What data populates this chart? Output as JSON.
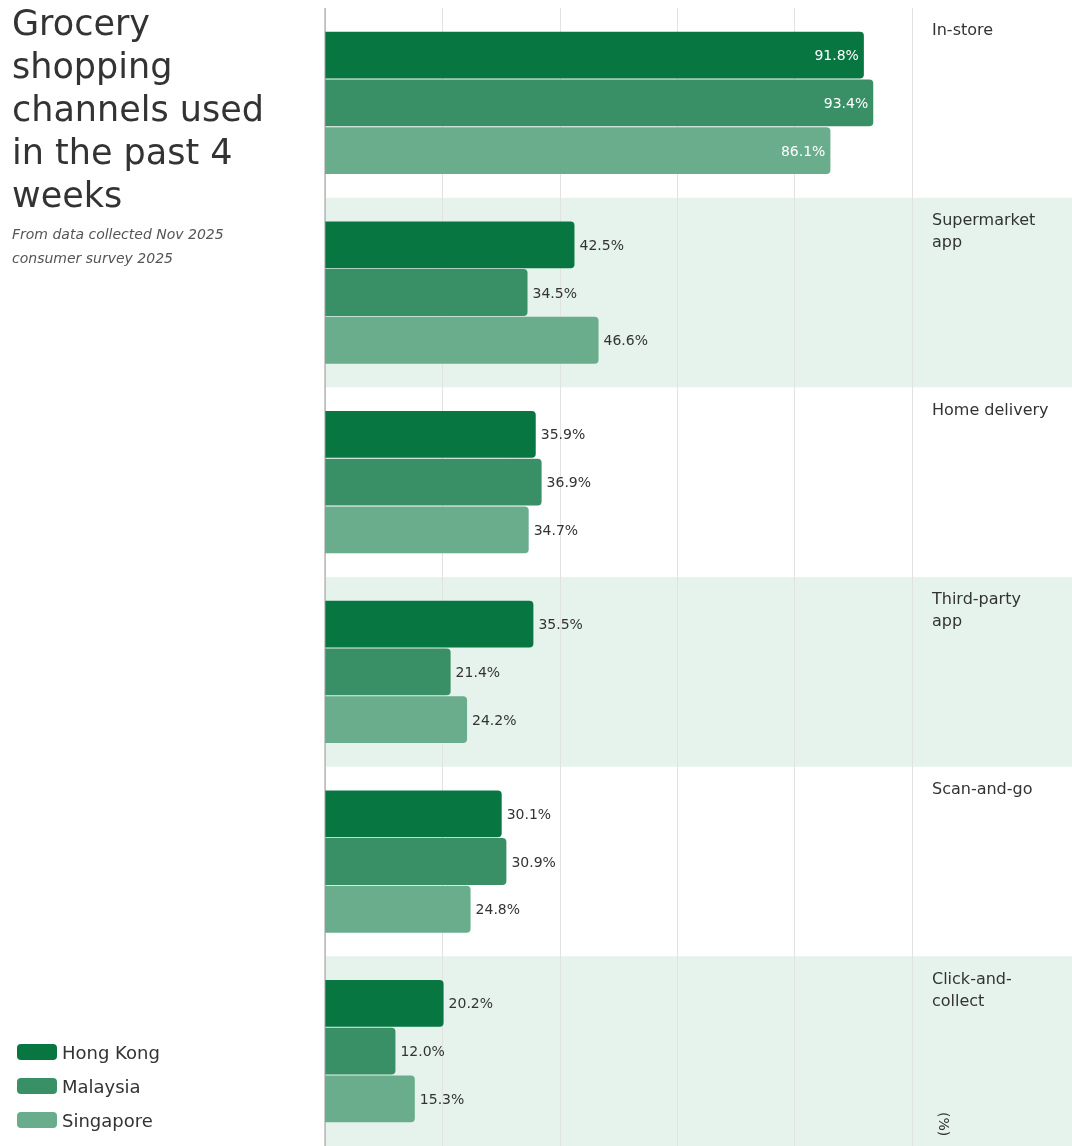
{
  "chart_data": {
    "type": "bar",
    "orientation": "horizontal",
    "title": "Grocery shopping channels used in the past 4 weeks",
    "subtitle": "From data collected Nov 2025",
    "annotations": [
      "consumer survey 2025",
      "(%)"
    ],
    "categories": [
      "In-store",
      "Supermarket app",
      "Home delivery",
      "Third-party app",
      "Scan-and-go",
      "Click-and-collect"
    ],
    "series": [
      {
        "name": "Hong Kong",
        "color": "#077640",
        "values": [
          91.8,
          42.5,
          35.9,
          35.5,
          30.1,
          20.2
        ],
        "value_labels": [
          "91.8%",
          "42.5%",
          "35.9%",
          "35.5%",
          "30.1%",
          "20.2%"
        ]
      },
      {
        "name": "Malaysia",
        "color": "#3a9066",
        "values": [
          93.4,
          34.5,
          36.9,
          21.4,
          30.9,
          12.0
        ],
        "value_labels": [
          "93.4%",
          "34.5%",
          "36.9%",
          "21.4%",
          "30.9%",
          "12.0%"
        ]
      },
      {
        "name": "Singapore",
        "color": "#6aad8c",
        "values": [
          86.1,
          46.6,
          34.7,
          24.2,
          24.8,
          15.3
        ],
        "value_labels": [
          "86.1%",
          "46.6%",
          "34.7%",
          "24.2%",
          "24.8%",
          "15.3%"
        ]
      }
    ],
    "xlim": [
      0,
      100
    ],
    "xticks": [
      {
        "value": 0,
        "label": null
      },
      {
        "value": 20,
        "label": null
      },
      {
        "value": 40,
        "label": null
      },
      {
        "value": 60,
        "label": null
      },
      {
        "value": 80,
        "label": null
      },
      {
        "value": 100,
        "label": null
      }
    ],
    "tick_labels": "y",
    "grid": "x",
    "legend": "bottom left",
    "bands": [
      {
        "axis": "y",
        "from": "Supermarket app",
        "to": "Supermarket app",
        "color": "#e5f3ec"
      },
      {
        "axis": "y",
        "from": "Third-party app",
        "to": "Third-party app",
        "color": "#e5f3ec"
      },
      {
        "axis": "y",
        "from": "Click-and-collect",
        "to": "Click-and-collect",
        "color": "#e5f3ec"
      }
    ]
  }
}
